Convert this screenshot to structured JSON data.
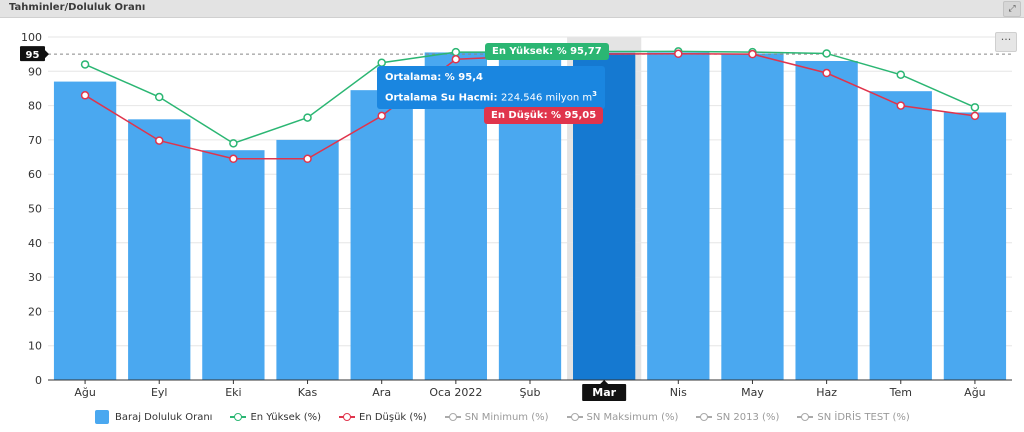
{
  "header": {
    "title": "Tahminler/Doluluk Oranı",
    "expand_icon": "expand-icon"
  },
  "menu": {
    "label": "···"
  },
  "chart_data": {
    "type": "bar",
    "categories": [
      "Ağu",
      "Eyl",
      "Eki",
      "Kas",
      "Ara",
      "Oca 2022",
      "Şub",
      "Mar",
      "Nis",
      "May",
      "Haz",
      "Tem",
      "Ağu"
    ],
    "ylim": [
      0,
      100
    ],
    "yticks": [
      "0",
      "10",
      "20",
      "30",
      "40",
      "50",
      "60",
      "70",
      "80",
      "90",
      "100"
    ],
    "reference_line": {
      "value": 95,
      "label": "95"
    },
    "highlight_index": 7,
    "series": [
      {
        "name": "Baraj Doluluk Oranı",
        "kind": "bar",
        "color": "#4aa8f0",
        "highlight_color": "#1579d1",
        "values": [
          87,
          76,
          67,
          70,
          84.5,
          95.5,
          95.4,
          95.4,
          95.5,
          95.2,
          93,
          84.2,
          78
        ]
      },
      {
        "name": "En Yüksek (%)",
        "kind": "line",
        "color": "#2bb673",
        "values": [
          92,
          82.5,
          69,
          76.5,
          92.5,
          95.6,
          95.6,
          95.77,
          95.8,
          95.6,
          95.2,
          89,
          79.5
        ]
      },
      {
        "name": "En Düşük (%)",
        "kind": "line",
        "color": "#e0344c",
        "values": [
          83,
          69.8,
          64.5,
          64.5,
          77,
          93.5,
          94.5,
          95.05,
          95.1,
          95,
          89.5,
          80,
          77
        ]
      }
    ],
    "legend": [
      {
        "name": "Baraj Doluluk Oranı",
        "symbol": "bar",
        "color": "#4aa8f0",
        "enabled": true
      },
      {
        "name": "En Yüksek (%)",
        "symbol": "line",
        "color": "#2bb673",
        "enabled": true
      },
      {
        "name": "En Düşük (%)",
        "symbol": "line",
        "color": "#e0344c",
        "enabled": true
      },
      {
        "name": "SN Minimum (%)",
        "symbol": "line",
        "color": "#aaaaaa",
        "enabled": false
      },
      {
        "name": "SN Maksimum (%)",
        "symbol": "line",
        "color": "#aaaaaa",
        "enabled": false
      },
      {
        "name": "SN 2013 (%)",
        "symbol": "line",
        "color": "#aaaaaa",
        "enabled": false
      },
      {
        "name": "SN İDRİS TEST (%)",
        "symbol": "line",
        "color": "#aaaaaa",
        "enabled": false
      }
    ],
    "tooltips": {
      "high": "En Yüksek: % 95,77",
      "low": "En Düşük: % 95,05",
      "avg_label": "Ortalama:",
      "avg_value": "% 95,4",
      "volume_label": "Ortalama Su Hacmi:",
      "volume_value": "224.546 milyon m",
      "volume_unit_sup": "3"
    }
  }
}
